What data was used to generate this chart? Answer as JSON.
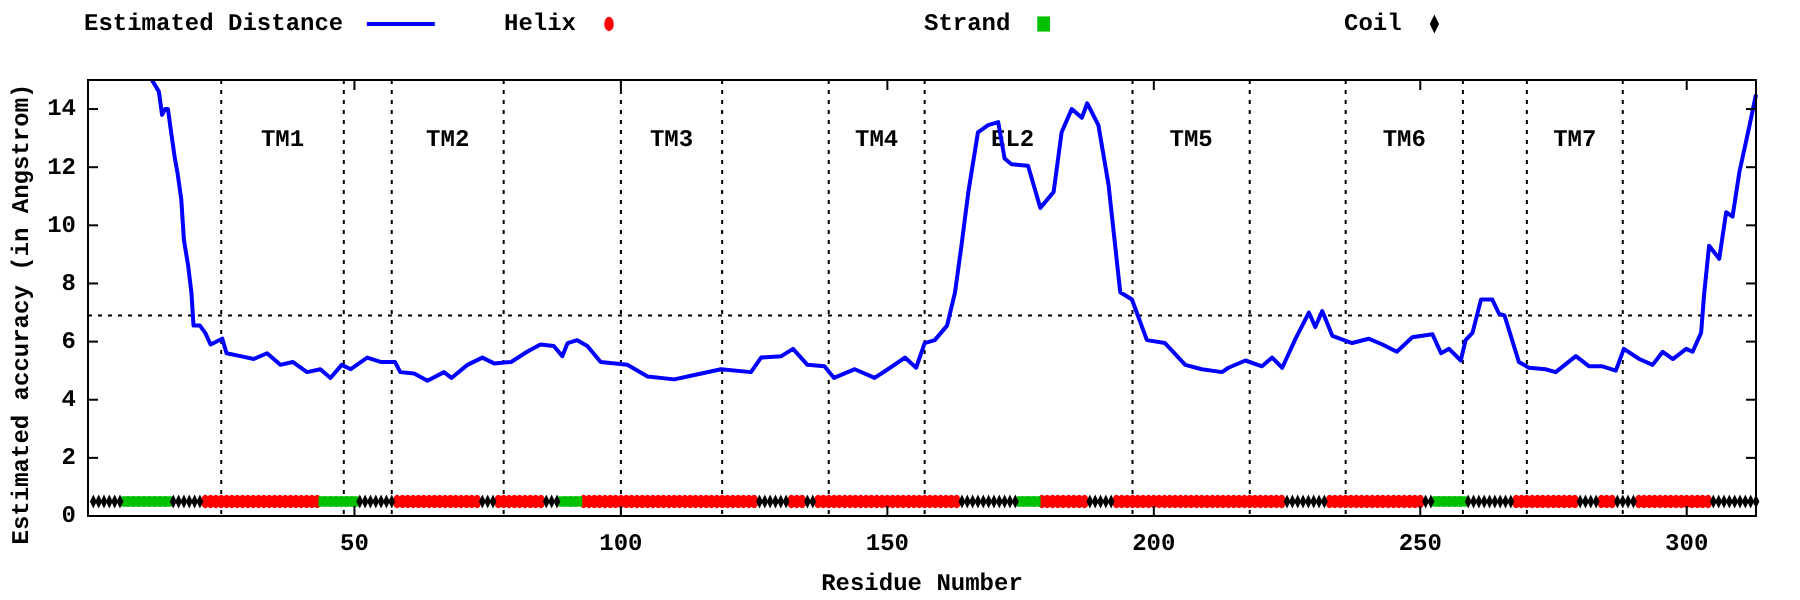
{
  "chart_data": {
    "type": "line",
    "xlabel": "Residue Number",
    "ylabel": "Estimated accuracy (in Angstrom)",
    "xlim": [
      0,
      313
    ],
    "ylim": [
      0,
      15
    ],
    "xticks": [
      50,
      100,
      150,
      200,
      250,
      300
    ],
    "yticks": [
      0,
      2,
      4,
      6,
      8,
      10,
      12,
      14
    ],
    "legend": "top",
    "series": [
      {
        "name": "Estimated Distance",
        "color": "#0000ff",
        "marker": "none",
        "x": [
          12,
          13.3,
          13.9,
          14.5,
          15,
          15.6,
          16.3,
          16.8,
          17.5,
          18,
          18.8,
          19.4,
          19.8,
          21,
          22,
          23,
          25.2,
          26,
          28.6,
          31.1,
          33.6,
          36.1,
          38.4,
          41.1,
          43.6,
          45.5,
          47.6,
          49.3,
          52.4,
          54.9,
          57.6,
          58.6,
          61.2,
          63.7,
          66.8,
          68.2,
          71.2,
          74,
          76.2,
          79.4,
          82.4,
          84.9,
          87.4,
          89,
          90,
          91.8,
          93.7,
          96.2,
          101.2,
          105,
          110,
          113.8,
          118.8,
          124.4,
          126.3,
          130.1,
          132.3,
          135,
          138.2,
          140,
          143.9,
          147.6,
          150.1,
          153.3,
          155.4,
          157,
          158.9,
          161.2,
          162.7,
          163.9,
          165.2,
          167,
          168.9,
          170.8,
          172,
          173.3,
          176.4,
          178.7,
          181.2,
          182.7,
          184.6,
          186.5,
          187.5,
          189.6,
          191.5,
          193.7,
          195.9,
          198.7,
          202.1,
          205.9,
          209,
          212.8,
          214,
          217.2,
          220.3,
          222.2,
          224.1,
          226.6,
          229.1,
          230.3,
          231.6,
          233.5,
          237.2,
          240.3,
          242.9,
          245.6,
          248.5,
          252.3,
          253.9,
          255.4,
          257.6,
          258.5,
          259.8,
          261.4,
          263.5,
          264.8,
          265.8,
          268.5,
          270.4,
          273.5,
          275.4,
          279.2,
          281.7,
          284.2,
          286.7,
          288.2,
          291.1,
          293.6,
          295.5,
          297.4,
          299.9,
          301.1,
          302.7,
          303.3,
          304.2,
          306.1,
          307.4,
          308.6,
          309.9,
          311.8,
          313
        ],
        "values": [
          15,
          14.6,
          13.8,
          14.0,
          14.0,
          13.2,
          12.3,
          11.8,
          10.9,
          9.5,
          8.6,
          7.7,
          6.55,
          6.55,
          6.3,
          5.9,
          6.1,
          5.6,
          5.5,
          5.4,
          5.6,
          5.2,
          5.3,
          4.95,
          5.05,
          4.75,
          5.2,
          5.05,
          5.45,
          5.3,
          5.3,
          4.95,
          4.9,
          4.65,
          4.95,
          4.75,
          5.2,
          5.45,
          5.25,
          5.3,
          5.65,
          5.9,
          5.85,
          5.5,
          5.95,
          6.05,
          5.85,
          5.3,
          5.2,
          4.8,
          4.7,
          4.85,
          5.05,
          4.95,
          5.45,
          5.5,
          5.75,
          5.2,
          5.15,
          4.75,
          5.05,
          4.75,
          5.05,
          5.45,
          5.1,
          5.95,
          6.05,
          6.55,
          7.7,
          9.3,
          11.15,
          13.2,
          13.45,
          13.55,
          12.3,
          12.1,
          12.05,
          10.6,
          11.15,
          13.2,
          14.0,
          13.7,
          14.2,
          13.45,
          11.4,
          7.7,
          7.45,
          6.05,
          5.95,
          5.2,
          5.05,
          4.95,
          5.1,
          5.35,
          5.15,
          5.45,
          5.1,
          6.1,
          7.0,
          6.5,
          7.05,
          6.2,
          5.95,
          6.1,
          5.9,
          5.65,
          6.15,
          6.25,
          5.6,
          5.75,
          5.35,
          6.05,
          6.3,
          7.45,
          7.45,
          6.95,
          6.9,
          5.3,
          5.1,
          5.05,
          4.95,
          5.5,
          5.15,
          5.15,
          5.0,
          5.75,
          5.4,
          5.2,
          5.65,
          5.4,
          5.75,
          5.65,
          6.3,
          7.7,
          9.3,
          8.85,
          10.45,
          10.3,
          11.85,
          13.45,
          14.5
        ]
      },
      {
        "name": "Helix",
        "type": "scatter",
        "color": "#ff0000",
        "marker": "circle",
        "x": [
          22,
          23,
          24,
          25,
          26,
          27,
          28,
          29,
          30,
          31,
          32,
          33,
          34,
          35,
          36,
          37,
          38,
          39,
          40,
          41,
          42,
          43,
          58,
          59,
          60,
          61,
          62,
          63,
          64,
          65,
          66,
          67,
          68,
          69,
          70,
          71,
          72,
          73,
          77,
          78,
          79,
          80,
          81,
          82,
          83,
          84,
          85,
          93,
          94,
          95,
          96,
          97,
          98,
          99,
          100,
          101,
          102,
          103,
          104,
          105,
          106,
          107,
          108,
          109,
          110,
          111,
          112,
          113,
          114,
          115,
          116,
          117,
          118,
          119,
          120,
          121,
          122,
          123,
          124,
          125,
          132,
          133,
          134,
          137,
          138,
          139,
          140,
          141,
          142,
          143,
          144,
          145,
          146,
          147,
          148,
          149,
          150,
          151,
          152,
          153,
          154,
          155,
          156,
          157,
          158,
          159,
          160,
          161,
          162,
          163,
          179,
          180,
          181,
          182,
          183,
          184,
          185,
          186,
          187,
          193,
          194,
          195,
          196,
          197,
          198,
          199,
          200,
          201,
          202,
          203,
          204,
          205,
          206,
          207,
          208,
          209,
          210,
          211,
          212,
          213,
          214,
          215,
          216,
          217,
          218,
          219,
          220,
          221,
          222,
          223,
          224,
          233,
          234,
          235,
          236,
          237,
          238,
          239,
          240,
          241,
          242,
          243,
          244,
          245,
          246,
          247,
          248,
          249,
          250,
          268,
          269,
          270,
          271,
          272,
          273,
          274,
          275,
          276,
          277,
          278,
          279,
          284,
          285,
          286,
          291,
          292,
          293,
          294,
          295,
          296,
          297,
          298,
          299,
          300,
          301,
          302,
          303,
          304
        ],
        "values": [
          0.5,
          0.5,
          0.5,
          0.5,
          0.5,
          0.5,
          0.5,
          0.5,
          0.5,
          0.5,
          0.5,
          0.5,
          0.5,
          0.5,
          0.5,
          0.5,
          0.5,
          0.5,
          0.5,
          0.5,
          0.5,
          0.5,
          0.5,
          0.5,
          0.5,
          0.5,
          0.5,
          0.5,
          0.5,
          0.5,
          0.5,
          0.5,
          0.5,
          0.5,
          0.5,
          0.5,
          0.5,
          0.5,
          0.5,
          0.5,
          0.5,
          0.5,
          0.5,
          0.5,
          0.5,
          0.5,
          0.5,
          0.5,
          0.5,
          0.5,
          0.5,
          0.5,
          0.5,
          0.5,
          0.5,
          0.5,
          0.5,
          0.5,
          0.5,
          0.5,
          0.5,
          0.5,
          0.5,
          0.5,
          0.5,
          0.5,
          0.5,
          0.5,
          0.5,
          0.5,
          0.5,
          0.5,
          0.5,
          0.5,
          0.5,
          0.5,
          0.5,
          0.5,
          0.5,
          0.5,
          0.5,
          0.5,
          0.5,
          0.5,
          0.5,
          0.5,
          0.5,
          0.5,
          0.5,
          0.5,
          0.5,
          0.5,
          0.5,
          0.5,
          0.5,
          0.5,
          0.5,
          0.5,
          0.5,
          0.5,
          0.5,
          0.5,
          0.5,
          0.5,
          0.5,
          0.5,
          0.5,
          0.5,
          0.5,
          0.5,
          0.5,
          0.5,
          0.5,
          0.5,
          0.5,
          0.5,
          0.5,
          0.5,
          0.5,
          0.5,
          0.5,
          0.5,
          0.5,
          0.5,
          0.5,
          0.5,
          0.5,
          0.5,
          0.5,
          0.5,
          0.5,
          0.5,
          0.5,
          0.5,
          0.5,
          0.5,
          0.5,
          0.5,
          0.5,
          0.5,
          0.5,
          0.5,
          0.5,
          0.5,
          0.5,
          0.5,
          0.5,
          0.5,
          0.5,
          0.5,
          0.5,
          0.5,
          0.5,
          0.5,
          0.5,
          0.5,
          0.5,
          0.5,
          0.5,
          0.5,
          0.5,
          0.5,
          0.5,
          0.5,
          0.5,
          0.5,
          0.5,
          0.5,
          0.5,
          0.5,
          0.5,
          0.5,
          0.5,
          0.5,
          0.5,
          0.5,
          0.5,
          0.5,
          0.5,
          0.5,
          0.5,
          0.5,
          0.5,
          0.5,
          0.5,
          0.5,
          0.5,
          0.5,
          0.5,
          0.5,
          0.5,
          0.5,
          0.5,
          0.5,
          0.5,
          0.5,
          0.5,
          0.5
        ]
      },
      {
        "name": "Strand",
        "type": "scatter",
        "color": "#00c000",
        "marker": "square",
        "x": [
          7,
          8,
          9,
          10,
          11,
          12,
          13,
          14,
          15,
          44,
          45,
          46,
          47,
          48,
          49,
          50,
          89,
          90,
          91,
          92,
          175,
          176,
          177,
          178,
          253,
          254,
          255,
          256,
          257,
          258
        ],
        "values": [
          0.5,
          0.5,
          0.5,
          0.5,
          0.5,
          0.5,
          0.5,
          0.5,
          0.5,
          0.5,
          0.5,
          0.5,
          0.5,
          0.5,
          0.5,
          0.5,
          0.5,
          0.5,
          0.5,
          0.5,
          0.5,
          0.5,
          0.5,
          0.5,
          0.5,
          0.5,
          0.5,
          0.5,
          0.5,
          0.5
        ]
      },
      {
        "name": "Coil",
        "type": "scatter",
        "color": "#000000",
        "marker": "diamond",
        "x": [
          1,
          2,
          3,
          4,
          5,
          6,
          16,
          17,
          18,
          19,
          20,
          21,
          51,
          52,
          53,
          54,
          55,
          56,
          57,
          74,
          75,
          76,
          86,
          87,
          88,
          126,
          127,
          128,
          129,
          130,
          131,
          135,
          136,
          164,
          165,
          166,
          167,
          168,
          169,
          170,
          171,
          172,
          173,
          174,
          188,
          189,
          190,
          191,
          192,
          225,
          226,
          227,
          228,
          229,
          230,
          231,
          232,
          251,
          252,
          259,
          260,
          261,
          262,
          263,
          264,
          265,
          266,
          267,
          280,
          281,
          282,
          283,
          287,
          288,
          289,
          290,
          305,
          306,
          307,
          308,
          309,
          310,
          311,
          312,
          313
        ],
        "values": [
          0.5,
          0.5,
          0.5,
          0.5,
          0.5,
          0.5,
          0.5,
          0.5,
          0.5,
          0.5,
          0.5,
          0.5,
          0.5,
          0.5,
          0.5,
          0.5,
          0.5,
          0.5,
          0.5,
          0.5,
          0.5,
          0.5,
          0.5,
          0.5,
          0.5,
          0.5,
          0.5,
          0.5,
          0.5,
          0.5,
          0.5,
          0.5,
          0.5,
          0.5,
          0.5,
          0.5,
          0.5,
          0.5,
          0.5,
          0.5,
          0.5,
          0.5,
          0.5,
          0.5,
          0.5,
          0.5,
          0.5,
          0.5,
          0.5,
          0.5,
          0.5,
          0.5,
          0.5,
          0.5,
          0.5,
          0.5,
          0.5,
          0.5,
          0.5,
          0.5,
          0.5,
          0.5,
          0.5,
          0.5,
          0.5,
          0.5,
          0.5,
          0.5,
          0.5,
          0.5,
          0.5,
          0.5,
          0.5,
          0.5,
          0.5,
          0.5,
          0.5,
          0.5,
          0.5,
          0.5,
          0.5,
          0.5,
          0.5,
          0.5,
          0.5
        ]
      }
    ],
    "ref_lines": [
      {
        "axis": "y",
        "value": 6.9,
        "color": "#000000",
        "line_style": "dotted"
      },
      {
        "axis": "x",
        "value": 25,
        "label": "TM1",
        "color": "#000000",
        "line_style": "dotted"
      },
      {
        "axis": "x",
        "value": 48,
        "color": "#000000",
        "line_style": "dotted"
      },
      {
        "axis": "x",
        "value": 57,
        "label": "TM2",
        "color": "#000000",
        "line_style": "dotted"
      },
      {
        "axis": "x",
        "value": 78,
        "color": "#000000",
        "line_style": "dotted"
      },
      {
        "axis": "x",
        "value": 100,
        "label": "TM3",
        "color": "#000000",
        "line_style": "dotted"
      },
      {
        "axis": "x",
        "value": 119,
        "color": "#000000",
        "line_style": "dotted"
      },
      {
        "axis": "x",
        "value": 139,
        "label": "TM4",
        "color": "#000000",
        "line_style": "dotted"
      },
      {
        "axis": "x",
        "value": 157,
        "label": "EL2",
        "color": "#000000",
        "line_style": "dotted"
      },
      {
        "axis": "x",
        "value": 196,
        "label": "TM5",
        "color": "#000000",
        "line_style": "dotted"
      },
      {
        "axis": "x",
        "value": 218,
        "color": "#000000",
        "line_style": "dotted"
      },
      {
        "axis": "x",
        "value": 236,
        "label": "TM6",
        "color": "#000000",
        "line_style": "dotted"
      },
      {
        "axis": "x",
        "value": 258,
        "color": "#000000",
        "line_style": "dotted"
      },
      {
        "axis": "x",
        "value": 270,
        "label": "TM7",
        "color": "#000000",
        "line_style": "dotted"
      },
      {
        "axis": "x",
        "value": 288,
        "color": "#000000",
        "line_style": "dotted"
      }
    ]
  }
}
